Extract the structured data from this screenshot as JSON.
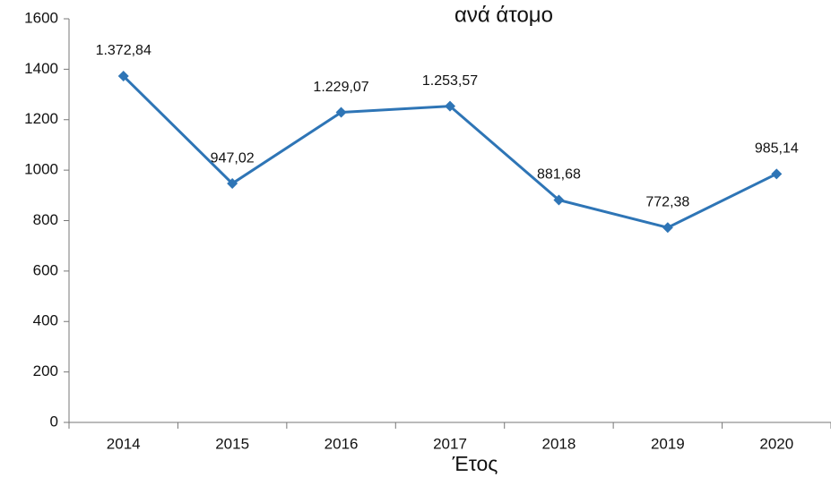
{
  "chart_data": {
    "type": "line",
    "title": "ανά άτομο",
    "x_label": "Έτος",
    "categories": [
      "2014",
      "2015",
      "2016",
      "2017",
      "2018",
      "2019",
      "2020"
    ],
    "values": [
      1372.84,
      947.02,
      1229.07,
      1253.57,
      881.68,
      772.38,
      985.14
    ],
    "value_labels": [
      "1.372,84",
      "947,02",
      "1.229,07",
      "1.253,57",
      "881,68",
      "772,38",
      "985,14"
    ],
    "color": "#2e75b6",
    "ylim": [
      0,
      1600
    ],
    "yticks": [
      0,
      200,
      400,
      600,
      800,
      1000,
      1200,
      1400,
      1600
    ],
    "grid": false
  }
}
